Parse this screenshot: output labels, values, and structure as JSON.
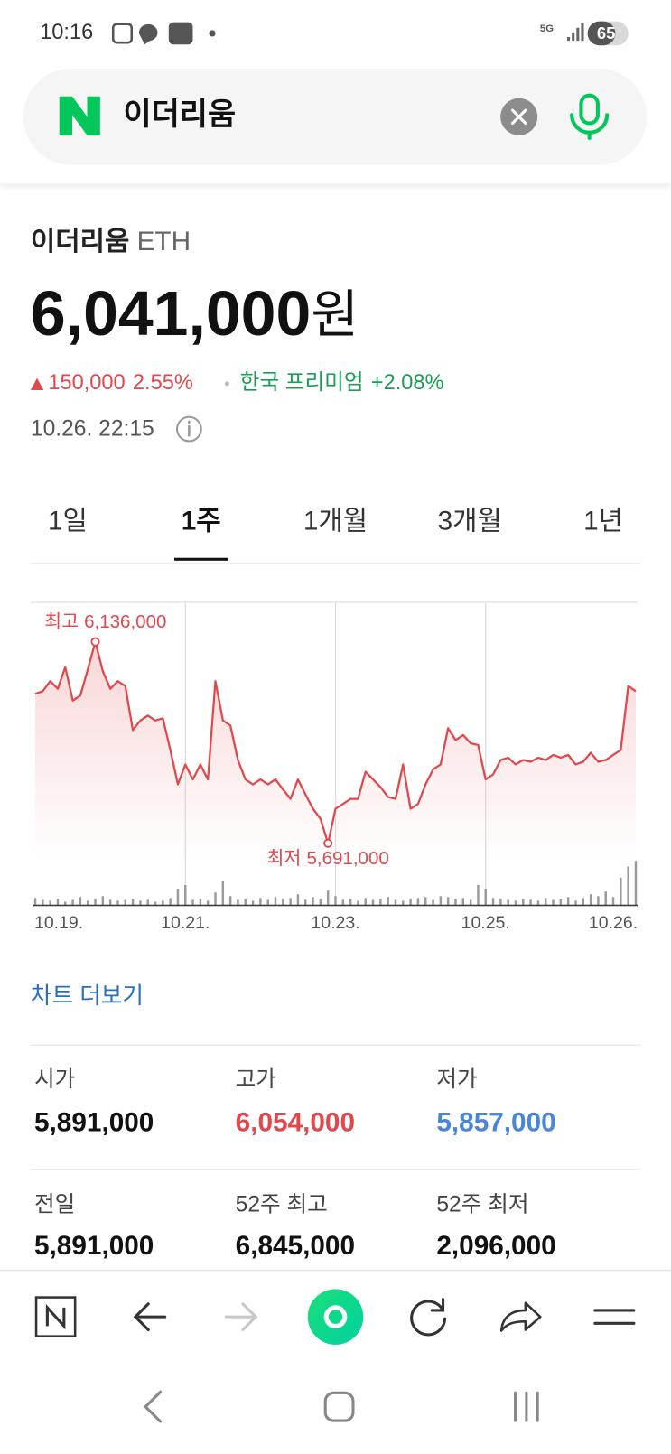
{
  "status": {
    "time": "10:16",
    "network": "5G",
    "battery": "65"
  },
  "search": {
    "query": "이더리움"
  },
  "quote": {
    "name": "이더리움",
    "ticker": "ETH",
    "price": "6,041,000",
    "unit": "원",
    "change": "150,000",
    "change_pct": "2.55%",
    "premium_label": "한국 프리미엄",
    "premium": "+2.08%",
    "time": "10.26. 22:15"
  },
  "tabs": {
    "items": [
      "1일",
      "1주",
      "1개월",
      "3개월",
      "1년"
    ],
    "selected": 1
  },
  "chart_data": {
    "type": "line",
    "color": "#e0484c",
    "volume_color": "#9a9a9a",
    "categories": [
      "10.19.",
      null,
      null,
      null,
      null,
      null,
      null,
      null,
      null,
      null,
      null,
      null,
      null,
      null,
      null,
      null,
      null,
      null,
      null,
      null,
      "10.21.",
      null,
      null,
      null,
      null,
      null,
      null,
      null,
      null,
      null,
      null,
      null,
      null,
      null,
      null,
      null,
      null,
      null,
      null,
      null,
      "10.23.",
      null,
      null,
      null,
      null,
      null,
      null,
      null,
      null,
      null,
      null,
      null,
      null,
      null,
      null,
      null,
      null,
      null,
      null,
      null,
      "10.25.",
      null,
      null,
      null,
      null,
      null,
      null,
      null,
      null,
      null,
      null,
      null,
      null,
      null,
      null,
      null,
      null,
      "10.26.",
      null,
      null,
      null
    ],
    "values": [
      6021000,
      6027000,
      6049000,
      6032000,
      6080000,
      6006000,
      6017000,
      6075000,
      6136000,
      6071000,
      6032000,
      6049000,
      6038000,
      5941000,
      5962000,
      5973000,
      5962000,
      5967000,
      5897000,
      5821000,
      5865000,
      5832000,
      5865000,
      5832000,
      6049000,
      5962000,
      5951000,
      5875000,
      5832000,
      5821000,
      5832000,
      5821000,
      5832000,
      5810000,
      5789000,
      5832000,
      5799000,
      5767000,
      5745000,
      5691000,
      5767000,
      5778000,
      5789000,
      5789000,
      5849000,
      5832000,
      5815000,
      5793000,
      5789000,
      5865000,
      5767000,
      5778000,
      5821000,
      5854000,
      5865000,
      5945000,
      5919000,
      5930000,
      5912000,
      5908000,
      5832000,
      5843000,
      5875000,
      5880000,
      5865000,
      5875000,
      5871000,
      5880000,
      5875000,
      5886000,
      5880000,
      5886000,
      5865000,
      5871000,
      5891000,
      5871000,
      5875000,
      5886000,
      5897000,
      6038000,
      6027000
    ],
    "volume_values": [
      8,
      6,
      5,
      7,
      4,
      6,
      9,
      5,
      7,
      10,
      6,
      5,
      6,
      7,
      5,
      6,
      4,
      5,
      8,
      18,
      22,
      6,
      7,
      5,
      14,
      26,
      10,
      6,
      7,
      5,
      8,
      6,
      9,
      7,
      8,
      12,
      6,
      9,
      7,
      16,
      10,
      6,
      7,
      5,
      8,
      6,
      7,
      9,
      6,
      5,
      7,
      8,
      9,
      6,
      10,
      9,
      7,
      8,
      6,
      22,
      18,
      8,
      7,
      6,
      5,
      7,
      6,
      5,
      8,
      6,
      7,
      9,
      5,
      8,
      12,
      10,
      15,
      9,
      30,
      42,
      48
    ],
    "ylim": [
      5650000,
      6223000
    ],
    "volume_lim": [
      0,
      50
    ],
    "high": {
      "label": "최고",
      "value_label": "6,136,000"
    },
    "low": {
      "label": "최저",
      "value_label": "5,691,000"
    }
  },
  "more_link": "차트 더보기",
  "stats": {
    "items": [
      {
        "label": "시가",
        "value": "5,891,000",
        "tone": "neutral"
      },
      {
        "label": "고가",
        "value": "6,054,000",
        "tone": "up"
      },
      {
        "label": "저가",
        "value": "5,857,000",
        "tone": "down"
      },
      {
        "label": "전일",
        "value": "5,891,000",
        "tone": "neutral"
      },
      {
        "label": "52주 최고",
        "value": "6,845,000",
        "tone": "neutral"
      },
      {
        "label": "52주 최저",
        "value": "2,096,000",
        "tone": "neutral"
      }
    ]
  }
}
